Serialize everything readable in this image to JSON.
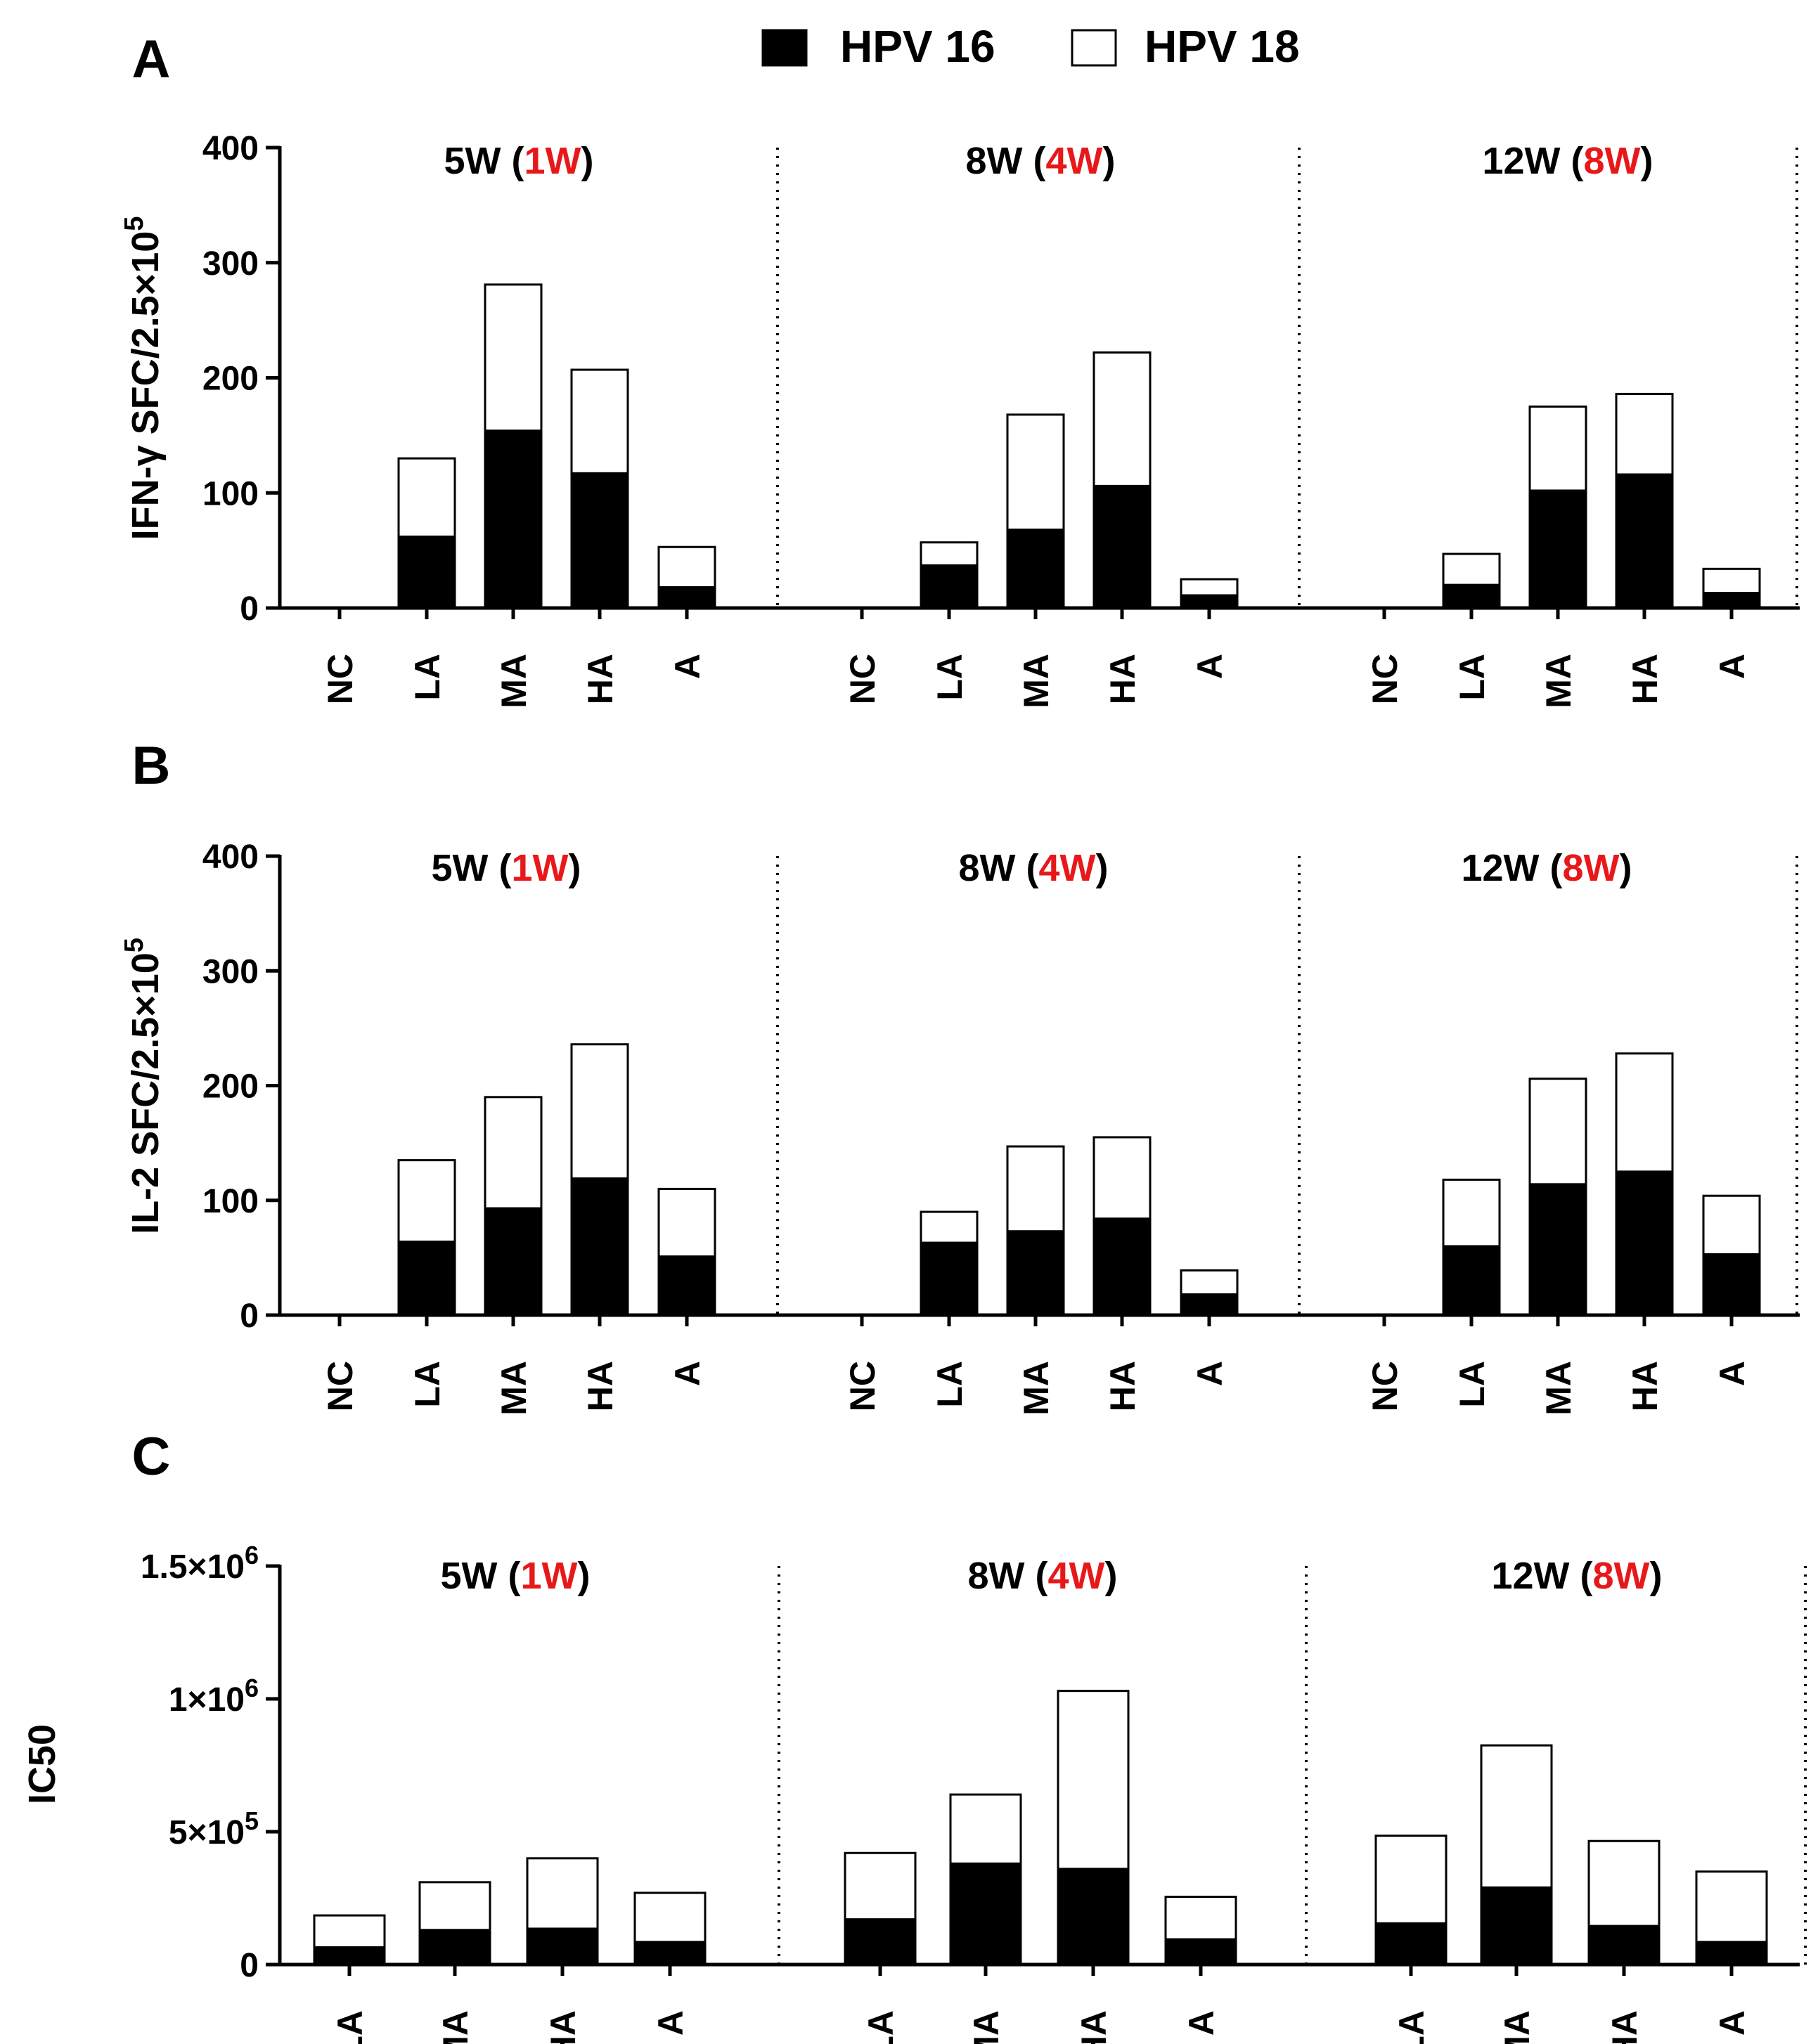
{
  "colors": {
    "hpv16": "#000000",
    "hpv18": "#ffffff",
    "red": "#e8181a",
    "text": "#000000"
  },
  "legend": [
    {
      "label": "HPV 16",
      "key": "hpv16"
    },
    {
      "label": "HPV 18",
      "key": "hpv18"
    }
  ],
  "chart_data": [
    {
      "type": "bar",
      "stacked": true,
      "panel_label": "A",
      "ylabel": "IFN-γ SFC/2.5×10",
      "ylabel_sup": "5",
      "ylim": [
        0,
        400
      ],
      "yticks": [
        0,
        100,
        200,
        300,
        400
      ],
      "ytick_labels": [
        "0",
        "100",
        "200",
        "300",
        "400"
      ],
      "groups": [
        {
          "title_prefix": "5W (",
          "title_red": "1W",
          "title_suffix": ")",
          "categories": [
            "NC",
            "LA",
            "MA",
            "HA",
            "A"
          ],
          "series": [
            {
              "name": "HPV 16",
              "values": [
                0,
                62,
                154,
                117,
                18
              ]
            },
            {
              "name": "HPV 18",
              "values": [
                0,
                68,
                127,
                90,
                35
              ]
            }
          ]
        },
        {
          "title_prefix": "8W (",
          "title_red": "4W",
          "title_suffix": ")",
          "categories": [
            "NC",
            "LA",
            "MA",
            "HA",
            "A"
          ],
          "series": [
            {
              "name": "HPV 16",
              "values": [
                0,
                37,
                68,
                106,
                11
              ]
            },
            {
              "name": "HPV 18",
              "values": [
                0,
                20,
                100,
                116,
                14
              ]
            }
          ]
        },
        {
          "title_prefix": "12W (",
          "title_red": "8W",
          "title_suffix": ")",
          "categories": [
            "NC",
            "LA",
            "MA",
            "HA",
            "A"
          ],
          "series": [
            {
              "name": "HPV 16",
              "values": [
                0,
                20,
                102,
                116,
                13
              ]
            },
            {
              "name": "HPV 18",
              "values": [
                0,
                27,
                73,
                70,
                21
              ]
            }
          ]
        }
      ]
    },
    {
      "type": "bar",
      "stacked": true,
      "panel_label": "B",
      "ylabel": "IL-2 SFC/2.5×10",
      "ylabel_sup": "5",
      "ylim": [
        0,
        400
      ],
      "yticks": [
        0,
        100,
        200,
        300,
        400
      ],
      "ytick_labels": [
        "0",
        "100",
        "200",
        "300",
        "400"
      ],
      "groups": [
        {
          "title_prefix": "5W (",
          "title_red": "1W",
          "title_suffix": ")",
          "categories": [
            "NC",
            "LA",
            "MA",
            "HA",
            "A"
          ],
          "series": [
            {
              "name": "HPV 16",
              "values": [
                0,
                64,
                93,
                119,
                51
              ]
            },
            {
              "name": "HPV 18",
              "values": [
                0,
                71,
                97,
                117,
                59
              ]
            }
          ]
        },
        {
          "title_prefix": "8W (",
          "title_red": "4W",
          "title_suffix": ")",
          "categories": [
            "NC",
            "LA",
            "MA",
            "HA",
            "A"
          ],
          "series": [
            {
              "name": "HPV 16",
              "values": [
                0,
                63,
                73,
                84,
                18
              ]
            },
            {
              "name": "HPV 18",
              "values": [
                0,
                27,
                74,
                71,
                21
              ]
            }
          ]
        },
        {
          "title_prefix": "12W (",
          "title_red": "8W",
          "title_suffix": ")",
          "categories": [
            "NC",
            "LA",
            "MA",
            "HA",
            "A"
          ],
          "series": [
            {
              "name": "HPV 16",
              "values": [
                0,
                60,
                114,
                125,
                53
              ]
            },
            {
              "name": "HPV 18",
              "values": [
                0,
                58,
                92,
                103,
                51
              ]
            }
          ]
        }
      ]
    },
    {
      "type": "bar",
      "stacked": true,
      "panel_label": "C",
      "ylabel": "IC50",
      "ylim": [
        0,
        1500000
      ],
      "yticks": [
        0,
        500000,
        1000000,
        1500000
      ],
      "ytick_labels": [
        {
          "base": "0",
          "sup": ""
        },
        {
          "base": "5×10",
          "sup": "5"
        },
        {
          "base": "1×10",
          "sup": "6"
        },
        {
          "base": "1.5×10",
          "sup": "6"
        }
      ],
      "groups": [
        {
          "title_prefix": "5W (",
          "title_red": "1W",
          "title_suffix": ")",
          "categories": [
            "LA",
            "MA",
            "HA",
            "A"
          ],
          "series": [
            {
              "name": "HPV 16",
              "values": [
                65000,
                130000,
                135000,
                85000
              ]
            },
            {
              "name": "HPV 18",
              "values": [
                120000,
                180000,
                265000,
                185000
              ]
            }
          ]
        },
        {
          "title_prefix": "8W (",
          "title_red": "4W",
          "title_suffix": ")",
          "categories": [
            "LA",
            "MA",
            "HA",
            "A"
          ],
          "series": [
            {
              "name": "HPV 16",
              "values": [
                170000,
                380000,
                360000,
                95000
              ]
            },
            {
              "name": "HPV 18",
              "values": [
                250000,
                260000,
                670000,
                160000
              ]
            }
          ]
        },
        {
          "title_prefix": "12W (",
          "title_red": "8W",
          "title_suffix": ")",
          "categories": [
            "LA",
            "MA",
            "HA",
            "A"
          ],
          "series": [
            {
              "name": "HPV 16",
              "values": [
                155000,
                290000,
                145000,
                85000
              ]
            },
            {
              "name": "HPV 18",
              "values": [
                330000,
                535000,
                320000,
                265000
              ]
            }
          ]
        }
      ]
    }
  ]
}
